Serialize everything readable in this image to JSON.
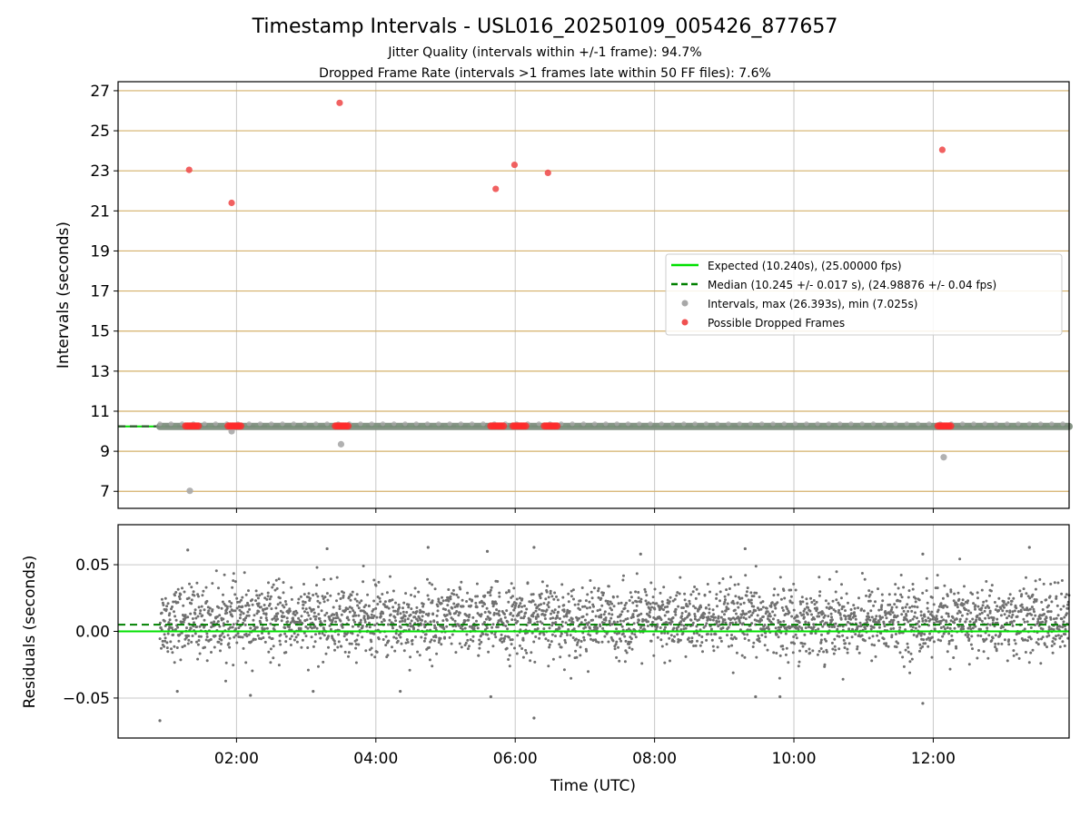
{
  "chart_data": [
    {
      "type": "scatter",
      "title": "Timestamp Intervals - USL016_20250109_005426_877657",
      "subtitle_lines": [
        "Jitter Quality (intervals within +/-1 frame): 94.7%",
        "Dropped Frame Rate (intervals >1 frames late within 50 FF files): 7.6%"
      ],
      "xlabel": "",
      "ylabel": "Intervals (seconds)",
      "x_unit": "hours UTC",
      "xlim": [
        0.3,
        13.95
      ],
      "ylim": [
        6.15,
        27.45
      ],
      "y_ticks": [
        7,
        9,
        11,
        13,
        15,
        17,
        19,
        21,
        23,
        25,
        27
      ],
      "y_tick_labels": [
        "7",
        "9",
        "11",
        "13",
        "15",
        "17",
        "19",
        "21",
        "23",
        "25",
        "27"
      ],
      "x_ticks": [
        2,
        4,
        6,
        8,
        10,
        12
      ],
      "hgrid_color": "#d4b06a",
      "vgrid_color": "#c8c8c8",
      "legend_position": "right",
      "legend": [
        {
          "label": "Expected (10.240s), (25.00000 fps)",
          "kind": "solid-line",
          "color": "#00e000"
        },
        {
          "label": "Median (10.245 +/- 0.017 s), (24.98876 +/- 0.04 fps)",
          "kind": "dashed-line",
          "color": "#008000"
        },
        {
          "label": "Intervals, max (26.393s), min (7.025s)",
          "kind": "marker",
          "color": "#a8a8a8"
        },
        {
          "label": "Possible Dropped Frames",
          "kind": "marker",
          "color": "#f05050"
        }
      ],
      "expected_line": 10.24,
      "median_line": 10.245,
      "intervals_band": {
        "x_start": 0.9,
        "x_end": 13.95,
        "y": 10.24
      },
      "interval_outliers": [
        {
          "x": 1.33,
          "y": 7.025
        },
        {
          "x": 1.93,
          "y": 10.0
        },
        {
          "x": 3.5,
          "y": 9.35
        },
        {
          "x": 12.15,
          "y": 8.7
        }
      ],
      "dropped_frames": [
        {
          "x": 1.32,
          "y": 23.05
        },
        {
          "x": 1.93,
          "y": 21.4
        },
        {
          "x": 3.48,
          "y": 26.393
        },
        {
          "x": 5.72,
          "y": 22.1
        },
        {
          "x": 5.99,
          "y": 23.3
        },
        {
          "x": 6.47,
          "y": 22.9
        },
        {
          "x": 12.13,
          "y": 24.05
        }
      ],
      "dropped_clusters": [
        {
          "x_start": 1.27,
          "x_end": 1.45,
          "y": 10.26
        },
        {
          "x_start": 1.88,
          "x_end": 2.06,
          "y": 10.26
        },
        {
          "x_start": 3.42,
          "x_end": 3.62,
          "y": 10.26
        },
        {
          "x_start": 5.65,
          "x_end": 5.85,
          "y": 10.26
        },
        {
          "x_start": 5.97,
          "x_end": 6.17,
          "y": 10.26
        },
        {
          "x_start": 6.42,
          "x_end": 6.62,
          "y": 10.26
        },
        {
          "x_start": 12.07,
          "x_end": 12.27,
          "y": 10.26
        }
      ]
    },
    {
      "type": "scatter",
      "title": "",
      "xlabel": "Time (UTC)",
      "ylabel": "Residuals (seconds)",
      "x_unit": "hours UTC",
      "xlim": [
        0.3,
        13.95
      ],
      "ylim": [
        -0.08,
        0.08
      ],
      "x_ticks": [
        2,
        4,
        6,
        8,
        10,
        12
      ],
      "x_tick_labels": [
        "02:00",
        "04:00",
        "06:00",
        "08:00",
        "10:00",
        "12:00"
      ],
      "y_ticks": [
        -0.05,
        0.0,
        0.05
      ],
      "y_tick_labels": [
        "−0.05",
        "0.00",
        "0.05"
      ],
      "expected_line": 0.0,
      "median_line": 0.005,
      "point_color": "#707070",
      "line_color": "#00e000",
      "median_color": "#008000",
      "residuals_distribution": {
        "x_start": 0.9,
        "x_end": 13.95,
        "center": 0.008,
        "spread": 0.013,
        "approx_points": 3200
      },
      "residual_outliers": [
        {
          "x": 0.9,
          "y": -0.067
        },
        {
          "x": 1.15,
          "y": -0.045
        },
        {
          "x": 1.3,
          "y": 0.061
        },
        {
          "x": 2.2,
          "y": -0.048
        },
        {
          "x": 3.1,
          "y": -0.045
        },
        {
          "x": 3.3,
          "y": 0.062
        },
        {
          "x": 4.35,
          "y": -0.045
        },
        {
          "x": 4.75,
          "y": 0.063
        },
        {
          "x": 5.6,
          "y": 0.06
        },
        {
          "x": 5.65,
          "y": -0.049
        },
        {
          "x": 6.27,
          "y": 0.063
        },
        {
          "x": 6.27,
          "y": -0.065
        },
        {
          "x": 7.8,
          "y": 0.058
        },
        {
          "x": 9.3,
          "y": 0.062
        },
        {
          "x": 9.45,
          "y": -0.049
        },
        {
          "x": 9.8,
          "y": -0.049
        },
        {
          "x": 11.85,
          "y": 0.058
        },
        {
          "x": 11.85,
          "y": -0.054
        },
        {
          "x": 13.38,
          "y": 0.063
        }
      ]
    }
  ]
}
